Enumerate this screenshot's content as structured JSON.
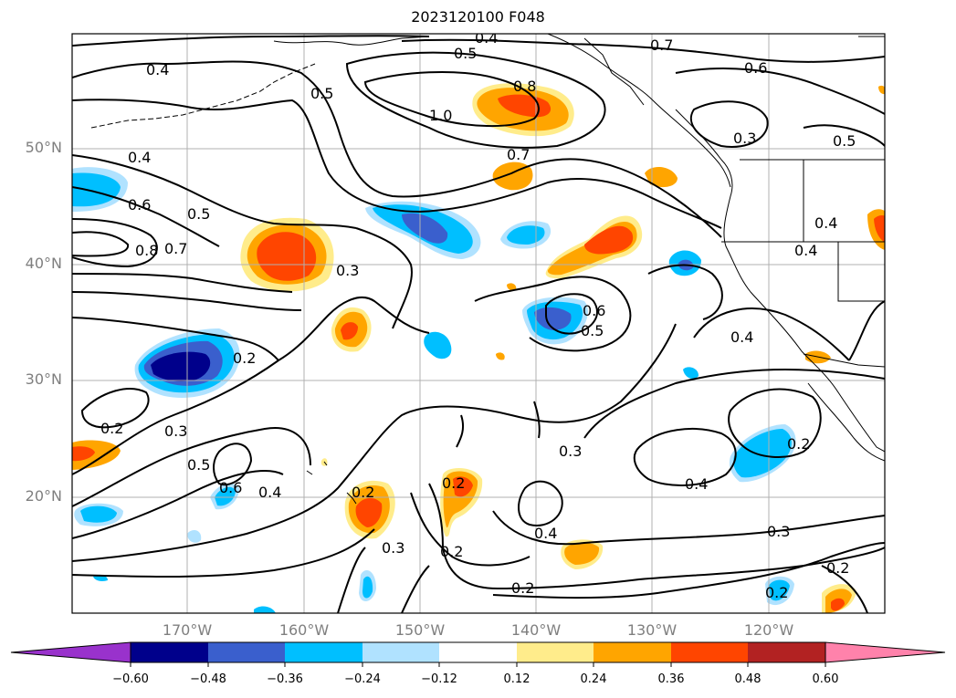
{
  "title": "2023120100 F048",
  "lat_labels": [
    "50°N",
    "40°N",
    "30°N",
    "20°N"
  ],
  "lon_labels": [
    "170°W",
    "160°W",
    "150°W",
    "140°W",
    "130°W",
    "120°W"
  ],
  "colorbar": {
    "ticks": [
      "−0.60",
      "−0.48",
      "−0.36",
      "−0.24",
      "−0.12",
      "0.12",
      "0.24",
      "0.36",
      "0.48",
      "0.60"
    ],
    "colors": [
      "#9932cc",
      "#00008b",
      "#3a5fcd",
      "#00bfff",
      "#b0e2ff",
      "#ffffff",
      "#ffec8b",
      "#ffa500",
      "#ff4500",
      "#b22222",
      "#ff82ab"
    ]
  },
  "contour_labels": [
    "0.4",
    "0.5",
    "0.4",
    "0.5",
    "0.7",
    "0.6",
    "0.4",
    "0.5",
    "1.0",
    "0.8",
    "0.7",
    "0.3",
    "0.5",
    "0.4",
    "0.6",
    "0.5",
    "0.8",
    "0.7",
    "0.3",
    "0.4",
    "0.3",
    "0.6",
    "0.5",
    "0.2",
    "0.4",
    "0.2",
    "0.3",
    "0.5",
    "0.6",
    "0.4",
    "0.2",
    "0.2",
    "0.2",
    "0.3",
    "0.3",
    "0.4",
    "0.4",
    "0.2",
    "0.3",
    "0.2",
    "0.2",
    "0.2"
  ]
}
